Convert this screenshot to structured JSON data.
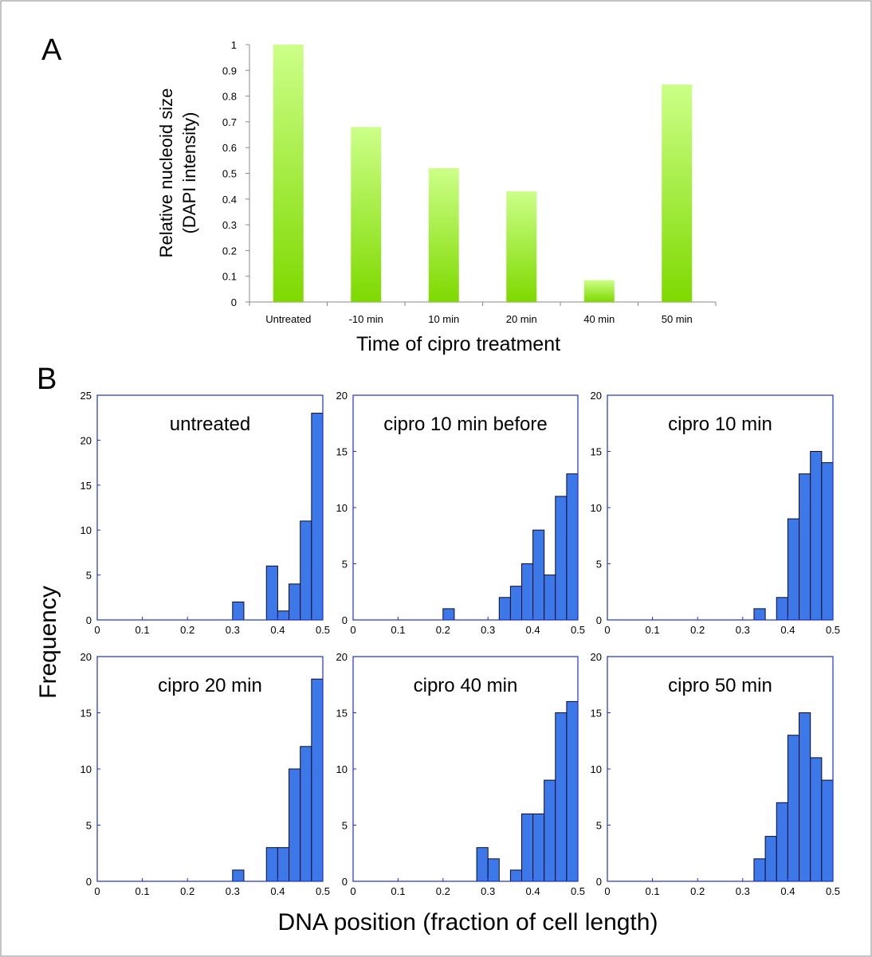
{
  "panel_labels": {
    "a": "A",
    "b": "B"
  },
  "colors": {
    "bar_top": "#ccff88",
    "bar_bottom": "#7ed900",
    "hist_fill": "#3d78e8",
    "hist_stroke": "#0a0a2a",
    "frame": "#1f2fd0"
  },
  "shared_labels": {
    "frequency": "Frequency",
    "dna_position": "DNA position (fraction of cell length)"
  },
  "chart_data": [
    {
      "type": "bar",
      "title": "",
      "categories": [
        "Untreated",
        "-10 min",
        "10 min",
        "20 min",
        "40 min",
        "50 min"
      ],
      "values": [
        1.0,
        0.68,
        0.52,
        0.43,
        0.085,
        0.845
      ],
      "xlabel": "Time of cipro treatment",
      "ylabel_lines": [
        "Relative nucleoid size",
        "(DAPI intensity)"
      ],
      "ylim": [
        0,
        1
      ],
      "yticks": [
        "0",
        "0.1",
        "0.2",
        "0.3",
        "0.4",
        "0.5",
        "0.6",
        "0.7",
        "0.8",
        "0.9",
        "1"
      ],
      "grid": false
    },
    {
      "type": "bar",
      "title": "untreated",
      "xlim": [
        0,
        0.5
      ],
      "ylim": [
        0,
        25
      ],
      "xticks": [
        "0",
        "0.1",
        "0.2",
        "0.3",
        "0.4",
        "0.5"
      ],
      "yticks": [
        "0",
        "5",
        "10",
        "15",
        "20",
        "25"
      ],
      "bins": [
        [
          0.3,
          0.325,
          2
        ],
        [
          0.375,
          0.4,
          6
        ],
        [
          0.4,
          0.425,
          1
        ],
        [
          0.425,
          0.45,
          4
        ],
        [
          0.45,
          0.475,
          11
        ],
        [
          0.475,
          0.5,
          23
        ]
      ]
    },
    {
      "type": "bar",
      "title": "cipro 10 min before",
      "xlim": [
        0,
        0.5
      ],
      "ylim": [
        0,
        20
      ],
      "xticks": [
        "0",
        "0.1",
        "0.2",
        "0.3",
        "0.4",
        "0.5"
      ],
      "yticks": [
        "0",
        "5",
        "10",
        "15",
        "20"
      ],
      "bins": [
        [
          0.2,
          0.225,
          1
        ],
        [
          0.325,
          0.35,
          2
        ],
        [
          0.35,
          0.375,
          3
        ],
        [
          0.375,
          0.4,
          5
        ],
        [
          0.4,
          0.425,
          8
        ],
        [
          0.425,
          0.45,
          4
        ],
        [
          0.45,
          0.475,
          11
        ],
        [
          0.475,
          0.5,
          13
        ]
      ]
    },
    {
      "type": "bar",
      "title": "cipro 10 min",
      "xlim": [
        0,
        0.5
      ],
      "ylim": [
        0,
        20
      ],
      "xticks": [
        "0",
        "0.1",
        "0.2",
        "0.3",
        "0.4",
        "0.5"
      ],
      "yticks": [
        "0",
        "5",
        "10",
        "15",
        "20"
      ],
      "bins": [
        [
          0.325,
          0.35,
          1
        ],
        [
          0.375,
          0.4,
          2
        ],
        [
          0.4,
          0.425,
          9
        ],
        [
          0.425,
          0.45,
          13
        ],
        [
          0.45,
          0.475,
          15
        ],
        [
          0.475,
          0.5,
          14
        ]
      ]
    },
    {
      "type": "bar",
      "title": "cipro 20 min",
      "xlim": [
        0,
        0.5
      ],
      "ylim": [
        0,
        20
      ],
      "xticks": [
        "0",
        "0.1",
        "0.2",
        "0.3",
        "0.4",
        "0.5"
      ],
      "yticks": [
        "0",
        "5",
        "10",
        "15",
        "20"
      ],
      "bins": [
        [
          0.3,
          0.325,
          1
        ],
        [
          0.375,
          0.4,
          3
        ],
        [
          0.4,
          0.425,
          3
        ],
        [
          0.425,
          0.45,
          10
        ],
        [
          0.45,
          0.475,
          12
        ],
        [
          0.475,
          0.5,
          18
        ]
      ]
    },
    {
      "type": "bar",
      "title": "cipro 40 min",
      "xlim": [
        0,
        0.5
      ],
      "ylim": [
        0,
        20
      ],
      "xticks": [
        "0",
        "0.1",
        "0.2",
        "0.3",
        "0.4",
        "0.5"
      ],
      "yticks": [
        "0",
        "5",
        "10",
        "15",
        "20"
      ],
      "bins": [
        [
          0.275,
          0.3,
          3
        ],
        [
          0.3,
          0.325,
          2
        ],
        [
          0.35,
          0.375,
          1
        ],
        [
          0.375,
          0.4,
          6
        ],
        [
          0.4,
          0.425,
          6
        ],
        [
          0.425,
          0.45,
          9
        ],
        [
          0.45,
          0.475,
          15
        ],
        [
          0.475,
          0.5,
          16
        ]
      ]
    },
    {
      "type": "bar",
      "title": "cipro 50 min",
      "xlim": [
        0,
        0.5
      ],
      "ylim": [
        0,
        20
      ],
      "xticks": [
        "0",
        "0.1",
        "0.2",
        "0.3",
        "0.4",
        "0.5"
      ],
      "yticks": [
        "0",
        "5",
        "10",
        "15",
        "20"
      ],
      "bins": [
        [
          0.325,
          0.35,
          2
        ],
        [
          0.35,
          0.375,
          4
        ],
        [
          0.375,
          0.4,
          7
        ],
        [
          0.4,
          0.425,
          13
        ],
        [
          0.425,
          0.45,
          15
        ],
        [
          0.45,
          0.475,
          11
        ],
        [
          0.475,
          0.5,
          9
        ]
      ]
    }
  ]
}
